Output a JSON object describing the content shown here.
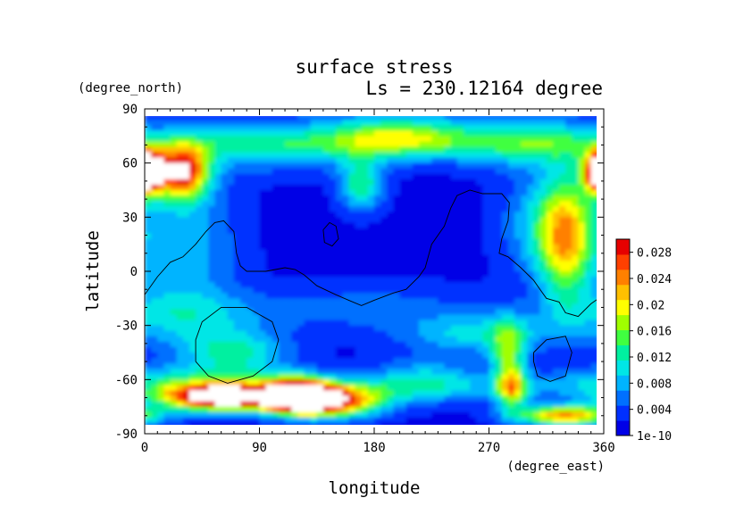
{
  "chart_data": {
    "type": "heatmap",
    "title": "surface stress",
    "subtitle": "Ls = 230.12164 degree",
    "xlabel": "longitude",
    "ylabel": "latitude",
    "x_units": "(degree_east)",
    "y_units": "(degree_north)",
    "xlim": [
      0,
      360
    ],
    "ylim": [
      -90,
      90
    ],
    "x_ticks": [
      0,
      90,
      180,
      270,
      360
    ],
    "y_ticks": [
      90,
      60,
      30,
      0,
      -30,
      -60,
      -90
    ],
    "grid": false,
    "colorbar": {
      "tick_labels": [
        "0.028",
        "0.024",
        "0.02",
        "0.016",
        "0.012",
        "0.008",
        "0.004",
        "1e-10"
      ],
      "tick_values": [
        0.028,
        0.024,
        0.02,
        0.016,
        0.012,
        0.008,
        0.004,
        1e-10
      ],
      "min": 1e-10,
      "max": 0.03,
      "colors": [
        "#0000e6",
        "#0030ff",
        "#0070ff",
        "#00b4ff",
        "#00e6e6",
        "#00f0a0",
        "#40ff40",
        "#a0ff00",
        "#ffff00",
        "#ffc000",
        "#ff8000",
        "#ff4000",
        "#e60000"
      ]
    },
    "field_description": "surface stress magnitude (approximate reconstruction from visible contours)",
    "blobs": [
      {
        "lon": 30,
        "lat": 55,
        "value": 0.026,
        "sx": 14,
        "sy": 10
      },
      {
        "lon": 0,
        "lat": 55,
        "value": 0.018,
        "sx": 10,
        "sy": 8
      },
      {
        "lon": 360,
        "lat": 55,
        "value": 0.022,
        "sx": 10,
        "sy": 8
      },
      {
        "lon": 200,
        "lat": 75,
        "value": 0.014,
        "sx": 40,
        "sy": 8
      },
      {
        "lon": 100,
        "lat": 70,
        "value": 0.008,
        "sx": 60,
        "sy": 10
      },
      {
        "lon": 300,
        "lat": 72,
        "value": 0.01,
        "sx": 40,
        "sy": 10
      },
      {
        "lon": 170,
        "lat": 48,
        "value": 0.012,
        "sx": 12,
        "sy": 10
      },
      {
        "lon": 330,
        "lat": 15,
        "value": 0.014,
        "sx": 14,
        "sy": 25
      },
      {
        "lon": 320,
        "lat": 25,
        "value": 0.01,
        "sx": 25,
        "sy": 20
      },
      {
        "lon": 30,
        "lat": 15,
        "value": 0.007,
        "sx": 30,
        "sy": 30
      },
      {
        "lon": 30,
        "lat": -25,
        "value": 0.007,
        "sx": 50,
        "sy": 10
      },
      {
        "lon": 70,
        "lat": -45,
        "value": 0.01,
        "sx": 30,
        "sy": 8
      },
      {
        "lon": 260,
        "lat": -35,
        "value": 0.008,
        "sx": 40,
        "sy": 8
      },
      {
        "lon": 285,
        "lat": -45,
        "value": 0.012,
        "sx": 10,
        "sy": 12
      },
      {
        "lon": 288,
        "lat": -65,
        "value": 0.016,
        "sx": 8,
        "sy": 8
      },
      {
        "lon": 220,
        "lat": -60,
        "value": 0.008,
        "sx": 30,
        "sy": 8
      },
      {
        "lon": 60,
        "lat": -70,
        "value": 0.034,
        "sx": 32,
        "sy": 5
      },
      {
        "lon": 140,
        "lat": -72,
        "value": 0.032,
        "sx": 30,
        "sy": 6
      },
      {
        "lon": 120,
        "lat": -68,
        "value": 0.024,
        "sx": 15,
        "sy": 6
      },
      {
        "lon": 330,
        "lat": -80,
        "value": 0.022,
        "sx": 28,
        "sy": 4
      },
      {
        "lon": 180,
        "lat": -20,
        "value": 0.004,
        "sx": 60,
        "sy": 10
      },
      {
        "lon": 50,
        "lat": -60,
        "value": 0.008,
        "sx": 60,
        "sy": 6
      }
    ],
    "contours": [
      [
        [
          0,
          -13
        ],
        [
          10,
          -3
        ],
        [
          20,
          5
        ],
        [
          30,
          8
        ],
        [
          40,
          15
        ],
        [
          48,
          22
        ],
        [
          55,
          27
        ],
        [
          62,
          28
        ],
        [
          70,
          22
        ],
        [
          72,
          10
        ],
        [
          75,
          3
        ],
        [
          80,
          0
        ],
        [
          95,
          0
        ],
        [
          110,
          2
        ],
        [
          118,
          1
        ],
        [
          125,
          -2
        ],
        [
          135,
          -8
        ],
        [
          150,
          -13
        ],
        [
          160,
          -16
        ],
        [
          170,
          -19
        ],
        [
          180,
          -16
        ],
        [
          195,
          -12
        ],
        [
          205,
          -10
        ],
        [
          215,
          -3
        ],
        [
          220,
          2
        ],
        [
          225,
          15
        ],
        [
          235,
          25
        ],
        [
          240,
          35
        ],
        [
          245,
          42
        ],
        [
          255,
          45
        ],
        [
          265,
          43
        ],
        [
          280,
          43
        ],
        [
          286,
          38
        ],
        [
          285,
          28
        ],
        [
          280,
          18
        ],
        [
          278,
          10
        ],
        [
          285,
          8
        ],
        [
          295,
          2
        ],
        [
          305,
          -5
        ],
        [
          310,
          -10
        ],
        [
          315,
          -15
        ],
        [
          325,
          -17
        ],
        [
          330,
          -23
        ],
        [
          340,
          -25
        ],
        [
          350,
          -18
        ],
        [
          360,
          -13
        ]
      ],
      [
        [
          140,
          23
        ],
        [
          145,
          27
        ],
        [
          150,
          25
        ],
        [
          152,
          18
        ],
        [
          147,
          14
        ],
        [
          141,
          16
        ],
        [
          140,
          23
        ]
      ],
      [
        [
          40,
          -50
        ],
        [
          50,
          -58
        ],
        [
          65,
          -62
        ],
        [
          85,
          -58
        ],
        [
          100,
          -50
        ],
        [
          105,
          -38
        ],
        [
          100,
          -28
        ],
        [
          80,
          -20
        ],
        [
          60,
          -20
        ],
        [
          45,
          -28
        ],
        [
          40,
          -38
        ],
        [
          40,
          -50
        ]
      ],
      [
        [
          305,
          -45
        ],
        [
          315,
          -38
        ],
        [
          330,
          -36
        ],
        [
          335,
          -45
        ],
        [
          330,
          -58
        ],
        [
          318,
          -61
        ],
        [
          308,
          -58
        ],
        [
          305,
          -50
        ],
        [
          305,
          -45
        ]
      ]
    ]
  }
}
